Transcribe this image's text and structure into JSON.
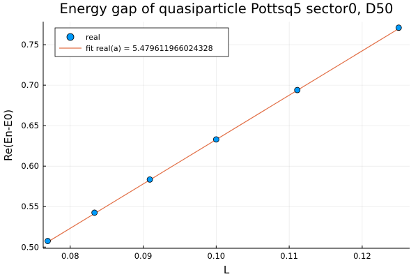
{
  "chart_data": {
    "type": "scatter",
    "title": "Energy gap of quasiparticle Pottsq5 sector0, D50",
    "xlabel": "L",
    "ylabel": "Re(En-E0)",
    "xlim": [
      0.0763,
      0.1265
    ],
    "ylim": [
      0.4985,
      0.7785
    ],
    "xticks": [
      0.08,
      0.09,
      0.1,
      0.11,
      0.12
    ],
    "xtick_labels": [
      "0.08",
      "0.09",
      "0.10",
      "0.11",
      "0.12"
    ],
    "yticks": [
      0.5,
      0.55,
      0.6,
      0.65,
      0.7,
      0.75
    ],
    "ytick_labels": [
      "0.50",
      "0.55",
      "0.60",
      "0.65",
      "0.70",
      "0.75"
    ],
    "grid": true,
    "legend_position": "top-left",
    "series": [
      {
        "name": "real",
        "kind": "scatter",
        "color": "#009AFA",
        "x": [
          0.07692,
          0.08333,
          0.09091,
          0.1,
          0.11111,
          0.125
        ],
        "y": [
          0.5075,
          0.5425,
          0.5835,
          0.633,
          0.694,
          0.771
        ]
      },
      {
        "name": "fit real(a) = 5.479611966024328",
        "kind": "line",
        "color": "#E26F46",
        "x": [
          0.07692,
          0.125
        ],
        "y": [
          0.5063,
          0.7698
        ]
      }
    ]
  }
}
